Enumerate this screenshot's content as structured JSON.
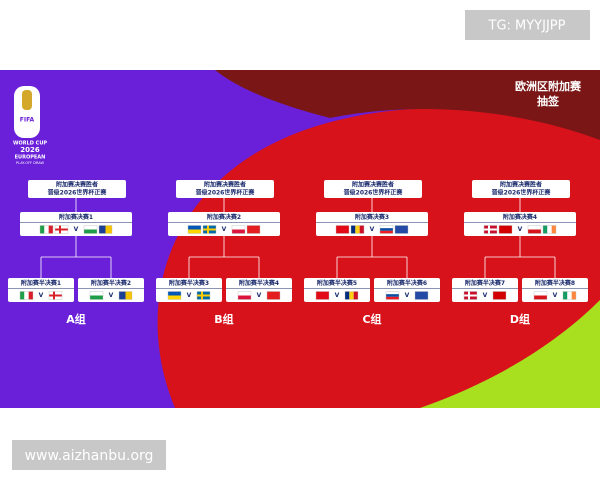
{
  "tag": "TG: MYYJJPP",
  "header": {
    "title": "欧洲区附加赛",
    "subtitle": "抽签"
  },
  "logo": {
    "brand": "FIFA",
    "line1": "WORLD CUP",
    "line2": "2026",
    "line3": "EUROPEAN",
    "line4": "PLAY-OFF DRAW"
  },
  "versus": "V",
  "groups": [
    {
      "winner": [
        "附加赛决赛胜者",
        "晋级2026世界杯正赛"
      ],
      "final": "附加赛决赛1",
      "semis": [
        "附加赛半决赛1",
        "附加赛半决赛2"
      ],
      "label": "A组"
    },
    {
      "winner": [
        "附加赛决赛胜者",
        "晋级2026世界杯正赛"
      ],
      "final": "附加赛决赛2",
      "semis": [
        "附加赛半决赛3",
        "附加赛半决赛4"
      ],
      "label": "B组"
    },
    {
      "winner": [
        "附加赛决赛胜者",
        "晋级2026世界杯正赛"
      ],
      "final": "附加赛决赛3",
      "semis": [
        "附加赛半决赛5",
        "附加赛半决赛6"
      ],
      "label": "C组"
    },
    {
      "winner": [
        "附加赛决赛胜者",
        "晋级2026世界杯正赛"
      ],
      "final": "附加赛决赛4",
      "semis": [
        "附加赛半决赛7",
        "附加赛半决赛8"
      ],
      "label": "D组"
    }
  ],
  "footer": "www.aizhanbu.org"
}
